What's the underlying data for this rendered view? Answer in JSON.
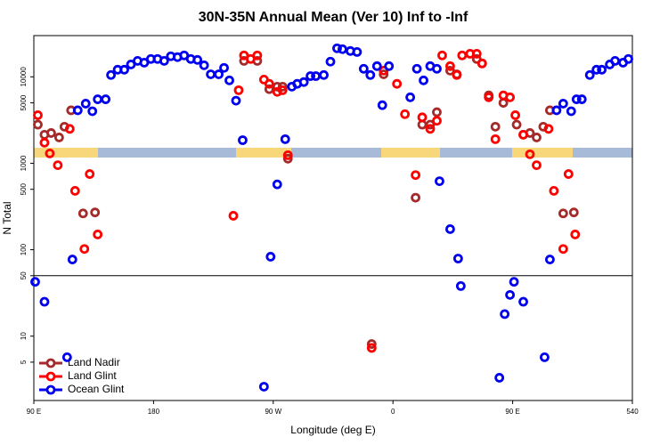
{
  "chart_data": {
    "type": "scatter",
    "title": "30N-35N Annual Mean (Ver 10)   Inf to -Inf",
    "x_label": "Longitude (deg E)",
    "y_label": "N Total",
    "xlim": [
      90,
      540
    ],
    "xticks": [
      {
        "value": 90,
        "label": "90 E"
      },
      180,
      {
        "value": 270,
        "label": "90 W"
      },
      {
        "value": 360,
        "label": "0"
      },
      {
        "value": 450,
        "label": "90 E"
      },
      540
    ],
    "ylim": [
      1.8,
      30000
    ],
    "log_y": true,
    "yticks": [
      5,
      10,
      50,
      100,
      500,
      1000,
      5000,
      10000
    ],
    "hlines": [
      50
    ],
    "legend": "bottom-left",
    "series": [
      {
        "name": "Land Nadir",
        "color": "#a52a2a",
        "x": [
          93,
          98,
          103,
          109,
          113,
          118,
          127,
          136,
          248,
          258,
          267,
          273,
          277,
          281,
          344,
          353,
          377,
          382,
          388,
          393,
          403,
          408,
          423,
          427,
          432,
          437,
          443,
          453,
          458,
          463,
          468,
          473,
          478,
          488,
          496
        ],
        "values": [
          2800,
          2140,
          2240,
          1990,
          2650,
          4100,
          263,
          270,
          15300,
          15300,
          7200,
          7700,
          7700,
          1130,
          8.1,
          10700,
          400,
          2800,
          2800,
          3900,
          11800,
          10700,
          16100,
          14300,
          6100,
          2650,
          5000,
          2800,
          2140,
          2240,
          1990,
          2650,
          4100,
          263,
          270
        ]
      },
      {
        "name": "Land Glint",
        "color": "#ff0000",
        "x": [
          93,
          98,
          102,
          108,
          117,
          121,
          128,
          132,
          138,
          240,
          244,
          248,
          253,
          258,
          263,
          267,
          273,
          277,
          281,
          344,
          353,
          363,
          369,
          377,
          382,
          388,
          393,
          397,
          403,
          408,
          412,
          418,
          423,
          427,
          432,
          437,
          443,
          448,
          452,
          458,
          463,
          468,
          477,
          481,
          488,
          492,
          497
        ],
        "values": [
          3600,
          1730,
          1300,
          950,
          2500,
          480,
          102,
          750,
          150,
          247,
          7000,
          17700,
          16100,
          17700,
          9300,
          8300,
          6700,
          7000,
          1240,
          7.3,
          11800,
          8300,
          3700,
          730,
          3400,
          2500,
          3100,
          17700,
          13300,
          10500,
          17700,
          18500,
          18500,
          14300,
          5800,
          1900,
          6100,
          5800,
          3600,
          2140,
          1270,
          950,
          2500,
          480,
          102,
          750,
          150
        ]
      },
      {
        "name": "Ocean Glint",
        "color": "#0000ee",
        "x": [
          91,
          98,
          115,
          119,
          123,
          129,
          134,
          138,
          144,
          148,
          153,
          158,
          163,
          168,
          173,
          178,
          183,
          188,
          193,
          198,
          203,
          208,
          213,
          218,
          223,
          229,
          233,
          237,
          242,
          247,
          263,
          268,
          273,
          279,
          284,
          288,
          293,
          298,
          302,
          308,
          313,
          318,
          322,
          328,
          333,
          338,
          343,
          348,
          352,
          357,
          373,
          378,
          383,
          388,
          393,
          395,
          403,
          409,
          411,
          440,
          444,
          448,
          451,
          458,
          474,
          478,
          483,
          488,
          494,
          498,
          502,
          508,
          513,
          517,
          523,
          527,
          533,
          537
        ],
        "values": [
          42.5,
          25,
          5.7,
          77,
          4100,
          4900,
          4000,
          5500,
          5500,
          10500,
          12100,
          12100,
          13900,
          15300,
          14600,
          16100,
          16100,
          15300,
          17300,
          16900,
          17700,
          16100,
          15700,
          13600,
          10700,
          10700,
          12700,
          9100,
          5300,
          1850,
          2.6,
          83,
          570,
          1900,
          7700,
          8300,
          8700,
          10200,
          10200,
          10500,
          15000,
          21400,
          20900,
          19900,
          19400,
          12400,
          10500,
          13300,
          4700,
          13300,
          5800,
          12400,
          9100,
          13300,
          12400,
          620,
          173,
          79,
          38,
          3.3,
          18,
          30,
          42.5,
          25,
          5.7,
          77,
          4100,
          4900,
          4000,
          5500,
          5500,
          10500,
          12100,
          12100,
          13900,
          15300,
          14600,
          16100
        ]
      }
    ]
  }
}
